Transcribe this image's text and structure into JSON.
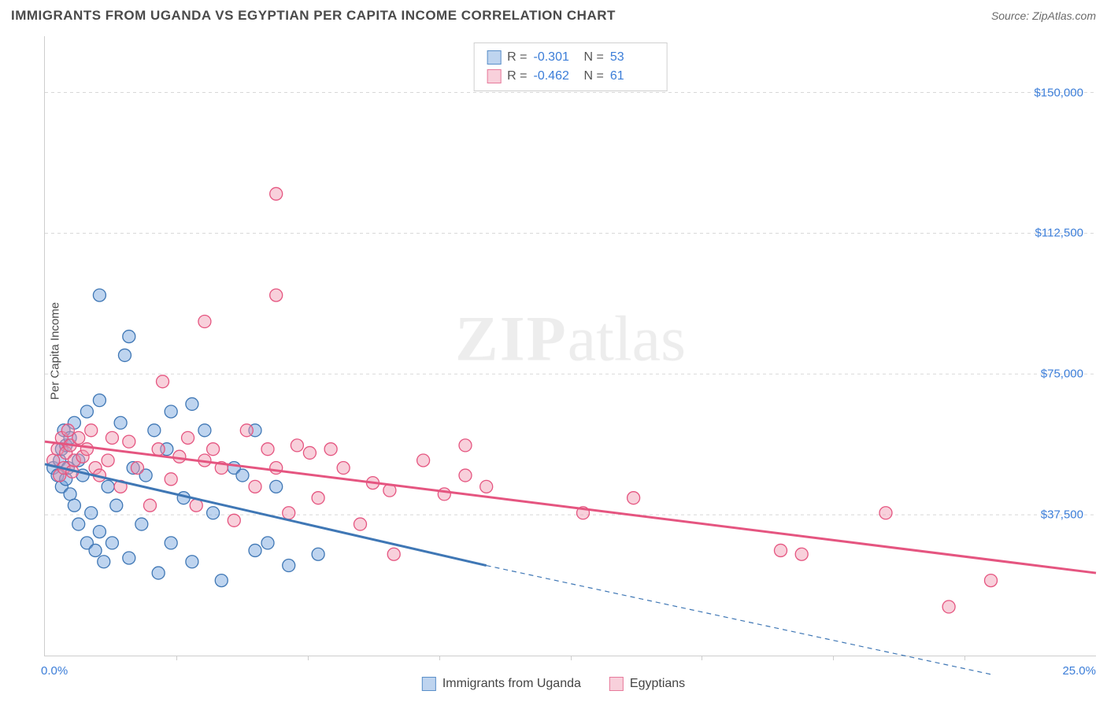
{
  "title": "IMMIGRANTS FROM UGANDA VS EGYPTIAN PER CAPITA INCOME CORRELATION CHART",
  "source": "Source: ZipAtlas.com",
  "y_axis_label": "Per Capita Income",
  "watermark": {
    "zip": "ZIP",
    "atlas": "atlas"
  },
  "chart": {
    "type": "scatter",
    "background_color": "#ffffff",
    "grid_color": "#d8d8d8",
    "axis_color": "#cdcdcd",
    "label_color": "#3b7dd8",
    "title_color": "#4a4a4a",
    "title_fontsize": 17,
    "label_fontsize": 15,
    "x": {
      "min": 0,
      "max": 25,
      "min_label": "0.0%",
      "max_label": "25.0%",
      "ticks": [
        3.125,
        6.25,
        9.375,
        12.5,
        15.625,
        18.75,
        21.875
      ]
    },
    "y": {
      "min": 0,
      "max": 165000,
      "ticks": [
        37500,
        75000,
        112500,
        150000
      ],
      "tick_labels": [
        "$37,500",
        "$75,000",
        "$112,500",
        "$150,000"
      ]
    },
    "marker_radius": 8,
    "marker_opacity": 0.45,
    "marker_stroke_width": 1.3,
    "trend_line_width": 3,
    "series": [
      {
        "name": "Immigrants from Uganda",
        "legend_label": "Immigrants from Uganda",
        "fill": "#6ea0dc",
        "stroke": "#3f77b5",
        "R_label": "R =",
        "R": "-0.301",
        "N_label": "N =",
        "N": "53",
        "trend": {
          "x1": 0,
          "y1": 51000,
          "x2_solid": 10.5,
          "y2_solid": 24000,
          "x2_dash": 22.5,
          "y2_dash": -5000
        },
        "points": [
          [
            0.2,
            50000
          ],
          [
            0.3,
            48000
          ],
          [
            0.35,
            52000
          ],
          [
            0.4,
            55000
          ],
          [
            0.4,
            45000
          ],
          [
            0.45,
            60000
          ],
          [
            0.5,
            47000
          ],
          [
            0.5,
            56000
          ],
          [
            0.55,
            50000
          ],
          [
            0.6,
            43000
          ],
          [
            0.6,
            58000
          ],
          [
            0.7,
            40000
          ],
          [
            0.7,
            62000
          ],
          [
            0.8,
            35000
          ],
          [
            0.8,
            52000
          ],
          [
            0.9,
            48000
          ],
          [
            1.0,
            30000
          ],
          [
            1.0,
            65000
          ],
          [
            1.1,
            38000
          ],
          [
            1.2,
            28000
          ],
          [
            1.3,
            33000
          ],
          [
            1.3,
            68000
          ],
          [
            1.4,
            25000
          ],
          [
            1.5,
            45000
          ],
          [
            1.6,
            30000
          ],
          [
            1.7,
            40000
          ],
          [
            1.8,
            62000
          ],
          [
            1.3,
            96000
          ],
          [
            1.9,
            80000
          ],
          [
            2.0,
            26000
          ],
          [
            2.1,
            50000
          ],
          [
            2.3,
            35000
          ],
          [
            2.4,
            48000
          ],
          [
            2.6,
            60000
          ],
          [
            2.7,
            22000
          ],
          [
            2.9,
            55000
          ],
          [
            3.0,
            30000
          ],
          [
            3.0,
            65000
          ],
          [
            3.3,
            42000
          ],
          [
            3.5,
            25000
          ],
          [
            3.5,
            67000
          ],
          [
            3.8,
            60000
          ],
          [
            4.0,
            38000
          ],
          [
            4.2,
            20000
          ],
          [
            4.5,
            50000
          ],
          [
            4.7,
            48000
          ],
          [
            5.0,
            28000
          ],
          [
            5.3,
            30000
          ],
          [
            5.5,
            45000
          ],
          [
            5.8,
            24000
          ],
          [
            6.5,
            27000
          ],
          [
            5.0,
            60000
          ],
          [
            2.0,
            85000
          ]
        ]
      },
      {
        "name": "Egyptians",
        "legend_label": "Egyptians",
        "fill": "#f096af",
        "stroke": "#e55580",
        "R_label": "R =",
        "R": "-0.462",
        "N_label": "N =",
        "N": "61",
        "trend": {
          "x1": 0,
          "y1": 57000,
          "x2_solid": 25,
          "y2_solid": 22000,
          "x2_dash": 25,
          "y2_dash": 22000
        },
        "points": [
          [
            0.2,
            52000
          ],
          [
            0.3,
            55000
          ],
          [
            0.35,
            48000
          ],
          [
            0.4,
            58000
          ],
          [
            0.45,
            50000
          ],
          [
            0.5,
            54000
          ],
          [
            0.55,
            60000
          ],
          [
            0.6,
            56000
          ],
          [
            0.65,
            49000
          ],
          [
            0.7,
            52000
          ],
          [
            0.8,
            58000
          ],
          [
            0.9,
            53000
          ],
          [
            1.0,
            55000
          ],
          [
            1.1,
            60000
          ],
          [
            1.2,
            50000
          ],
          [
            1.3,
            48000
          ],
          [
            1.5,
            52000
          ],
          [
            1.6,
            58000
          ],
          [
            1.8,
            45000
          ],
          [
            2.0,
            57000
          ],
          [
            2.2,
            50000
          ],
          [
            2.5,
            40000
          ],
          [
            2.7,
            55000
          ],
          [
            2.8,
            73000
          ],
          [
            3.0,
            47000
          ],
          [
            3.2,
            53000
          ],
          [
            3.4,
            58000
          ],
          [
            3.6,
            40000
          ],
          [
            3.8,
            52000
          ],
          [
            3.8,
            89000
          ],
          [
            4.0,
            55000
          ],
          [
            4.2,
            50000
          ],
          [
            4.5,
            36000
          ],
          [
            4.8,
            60000
          ],
          [
            5.0,
            45000
          ],
          [
            5.3,
            55000
          ],
          [
            5.5,
            50000
          ],
          [
            5.5,
            123000
          ],
          [
            5.8,
            38000
          ],
          [
            6.0,
            56000
          ],
          [
            6.3,
            54000
          ],
          [
            6.5,
            42000
          ],
          [
            6.8,
            55000
          ],
          [
            7.1,
            50000
          ],
          [
            7.5,
            35000
          ],
          [
            7.8,
            46000
          ],
          [
            8.2,
            44000
          ],
          [
            8.3,
            27000
          ],
          [
            9.0,
            52000
          ],
          [
            9.5,
            43000
          ],
          [
            10.0,
            48000
          ],
          [
            10.0,
            56000
          ],
          [
            10.5,
            45000
          ],
          [
            12.8,
            38000
          ],
          [
            14.0,
            42000
          ],
          [
            17.5,
            28000
          ],
          [
            18.0,
            27000
          ],
          [
            20.0,
            38000
          ],
          [
            21.5,
            13000
          ],
          [
            22.5,
            20000
          ],
          [
            5.5,
            96000
          ]
        ]
      }
    ]
  }
}
